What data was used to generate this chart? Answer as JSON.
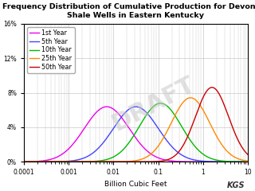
{
  "title": "Frequency Distribution of Cumulative Production for Devonian\nShale Wells in Eastern Kentucky",
  "xlabel": "Billion Cubic Feet",
  "ylim": [
    0,
    0.16
  ],
  "yticks": [
    0,
    0.04,
    0.08,
    0.12,
    0.16
  ],
  "ytick_labels": [
    "0%",
    "4%",
    "8%",
    "12%",
    "16%"
  ],
  "xtick_positions": [
    0.0001,
    0.001,
    0.01,
    0.1,
    1,
    10
  ],
  "xtick_labels": [
    "0.0001",
    "0.001",
    "0.01",
    "0.1",
    "1",
    "10"
  ],
  "series": [
    {
      "label": "1st Year",
      "color": "#ee00ee",
      "mu_log10": -2.15,
      "sigma_log10": 0.5
    },
    {
      "label": "5th Year",
      "color": "#4444ff",
      "mu_log10": -1.5,
      "sigma_log10": 0.5
    },
    {
      "label": "10th Year",
      "color": "#00bb00",
      "mu_log10": -0.95,
      "sigma_log10": 0.47
    },
    {
      "label": "25th Year",
      "color": "#ff8800",
      "mu_log10": -0.28,
      "sigma_log10": 0.43
    },
    {
      "label": "50th Year",
      "color": "#cc0000",
      "mu_log10": 0.2,
      "sigma_log10": 0.37
    }
  ],
  "draft_text": "DRAFT",
  "draft_color": "#c8c8c8",
  "draft_alpha": 0.55,
  "background_color": "#ffffff",
  "grid_color": "#c8c8c8",
  "title_fontsize": 6.8,
  "legend_fontsize": 5.8,
  "tick_fontsize": 5.5,
  "xlabel_fontsize": 6.5
}
